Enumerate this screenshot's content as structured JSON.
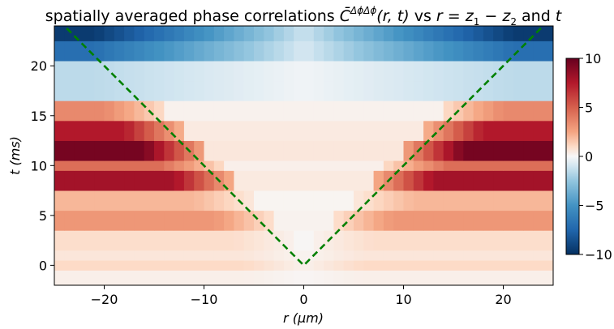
{
  "chart_data": {
    "type": "heatmap",
    "title": "spatially averaged phase correlations C̄^{ΔϕΔϕ}(r, t) vs r = z₁ − z₂ and t",
    "title_parts": {
      "prefix": "spatially averaged phase correlations ",
      "symbol": "C̄",
      "superscript": "ΔϕΔϕ",
      "args": "(r, t)",
      "mid": " vs ",
      "rvar": "r",
      "eq": " = ",
      "z": "z",
      "sub1": "1",
      "minus": " − ",
      "sub2": "2",
      "and": " and ",
      "tvar": "t"
    },
    "xlabel": "r (μm)",
    "xlabel_parts": {
      "var": "r",
      "unit": "(μm)"
    },
    "ylabel": "t (ms)",
    "ylabel_parts": {
      "var": "t",
      "unit": "(ms)"
    },
    "xlim": [
      -25,
      25
    ],
    "ylim": [
      -2,
      24
    ],
    "xticks": [
      -20,
      -10,
      0,
      10,
      20
    ],
    "yticks": [
      0,
      5,
      10,
      15,
      20
    ],
    "xtick_labels": [
      "−20",
      "−10",
      "0",
      "10",
      "20"
    ],
    "ytick_labels": [
      "0",
      "5",
      "10",
      "15",
      "20"
    ],
    "grid": false,
    "colormap": "RdBu_r",
    "colorbar": {
      "range": [
        -10,
        10
      ],
      "ticks": [
        -10,
        -5,
        0,
        5,
        10
      ],
      "tick_labels": [
        "−10",
        "−5",
        "0",
        "5",
        "10"
      ],
      "placement": "right"
    },
    "r_bin_width": 1.0,
    "t_rows": [
      {
        "t": -1.0,
        "edge": 0.3
      },
      {
        "t": 0.0,
        "edge": 1.0
      },
      {
        "t": 1.0,
        "edge": 0.6
      },
      {
        "t": 2.5,
        "edge": 0.9
      },
      {
        "t": 4.5,
        "edge": 3.0
      },
      {
        "t": 6.5,
        "edge": 2.0
      },
      {
        "t": 8.5,
        "edge": 8.0
      },
      {
        "t": 10.0,
        "edge": 4.5
      },
      {
        "t": 11.5,
        "edge": 9.5
      },
      {
        "t": 13.5,
        "edge": 7.5
      },
      {
        "t": 15.5,
        "edge": 3.5
      },
      {
        "t": 17.5,
        "edge": -1.5
      },
      {
        "t": 19.5,
        "edge": -1.5
      },
      {
        "t": 21.5,
        "edge": -7.0
      },
      {
        "t": 23.0,
        "edge": -9.5
      }
    ],
    "t_row_bounds": [
      -2.0,
      -0.5,
      0.5,
      1.5,
      3.5,
      5.5,
      7.5,
      9.5,
      10.5,
      12.5,
      14.5,
      16.5,
      18.5,
      20.5,
      22.5,
      24.0
    ],
    "light_cone": {
      "color": "#008000",
      "style": "dashed",
      "vertex": [
        0,
        0
      ],
      "speed": 1.0
    }
  }
}
